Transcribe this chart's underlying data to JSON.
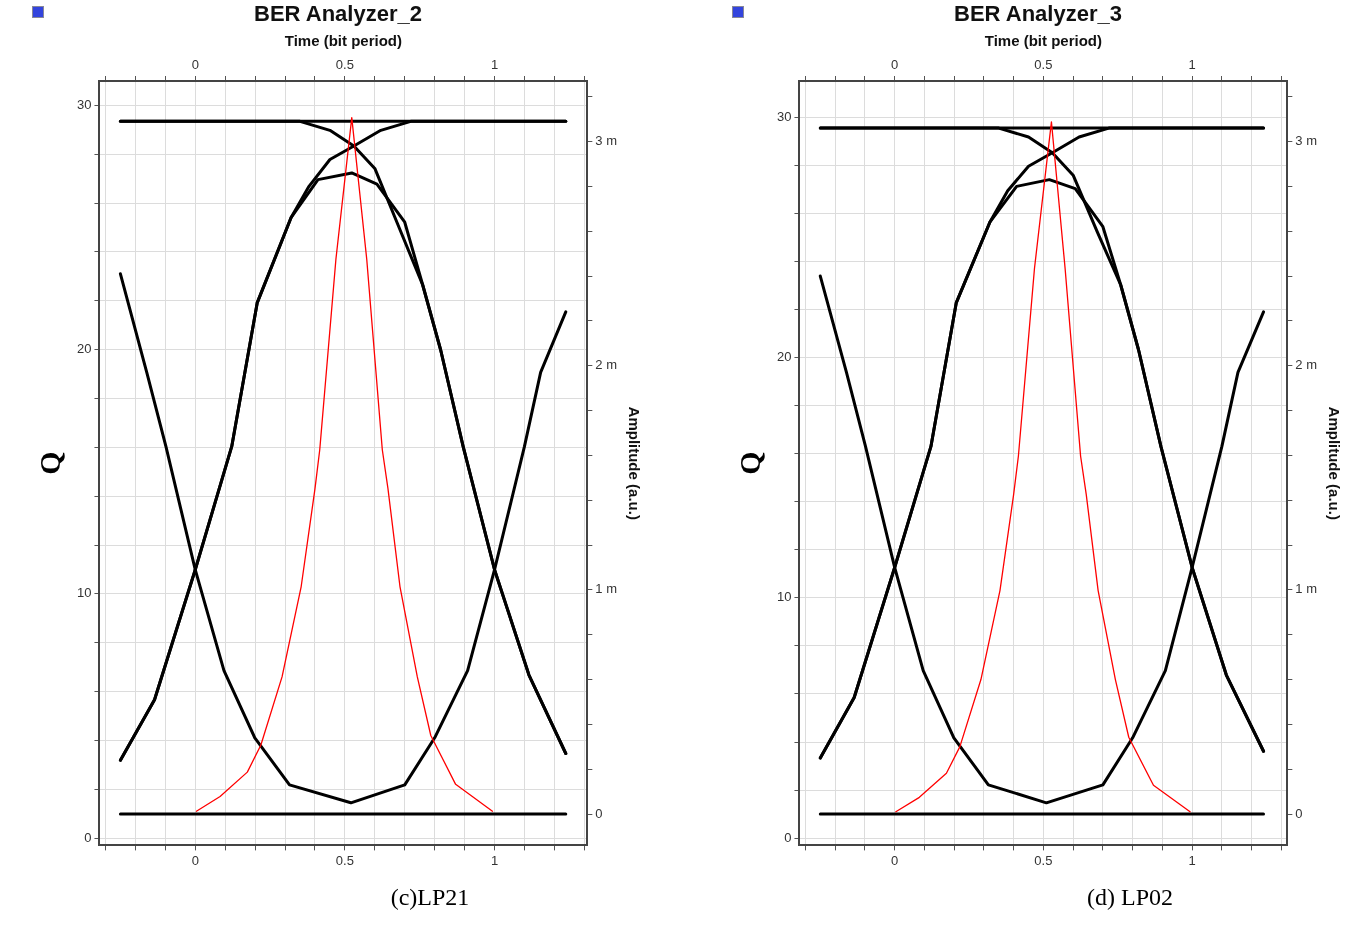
{
  "chart_data": [
    {
      "type": "line",
      "title": "BER Analyzer_2",
      "x2label": "Time (bit period)",
      "ylabel": "Q",
      "y2label": "Amplitude (a.u.)",
      "xlim": [
        -0.32,
        1.31
      ],
      "x2lim": [
        -0.32,
        1.31
      ],
      "xticks": [
        {
          "value": -0.3,
          "label": null
        },
        {
          "value": -0.2,
          "label": null
        },
        {
          "value": -0.1,
          "label": null
        },
        0,
        {
          "value": 0.1,
          "label": null
        },
        {
          "value": 0.2,
          "label": null
        },
        {
          "value": 0.3,
          "label": null
        },
        {
          "value": 0.4,
          "label": null
        },
        0.5,
        {
          "value": 0.6,
          "label": null
        },
        {
          "value": 0.7,
          "label": null
        },
        {
          "value": 0.8,
          "label": null
        },
        {
          "value": 0.9,
          "label": null
        },
        1,
        {
          "value": 1.1,
          "label": null
        },
        {
          "value": 1.2,
          "label": null
        },
        {
          "value": 1.3,
          "label": null
        }
      ],
      "x2ticks": [
        {
          "value": -0.3,
          "label": null
        },
        {
          "value": -0.2,
          "label": null
        },
        {
          "value": -0.1,
          "label": null
        },
        0,
        {
          "value": 0.1,
          "label": null
        },
        {
          "value": 0.2,
          "label": null
        },
        {
          "value": 0.3,
          "label": null
        },
        {
          "value": 0.4,
          "label": null
        },
        0.5,
        {
          "value": 0.6,
          "label": null
        },
        {
          "value": 0.7,
          "label": null
        },
        {
          "value": 0.8,
          "label": null
        },
        {
          "value": 0.9,
          "label": null
        },
        1,
        {
          "value": 1.1,
          "label": null
        },
        {
          "value": 1.2,
          "label": null
        },
        {
          "value": 1.3,
          "label": null
        }
      ],
      "ylim": [
        -0.3,
        31
      ],
      "yticks": [
        0,
        {
          "value": 2,
          "label": null
        },
        {
          "value": 4,
          "label": null
        },
        {
          "value": 6,
          "label": null
        },
        {
          "value": 8,
          "label": null
        },
        10,
        {
          "value": 12,
          "label": null
        },
        {
          "value": 14,
          "label": null
        },
        {
          "value": 16,
          "label": null
        },
        {
          "value": 18,
          "label": null
        },
        20,
        {
          "value": 22,
          "label": null
        },
        {
          "value": 24,
          "label": null
        },
        {
          "value": 26,
          "label": null
        },
        {
          "value": 28,
          "label": null
        },
        30
      ],
      "y2lim": [
        -0.14,
        3.27
      ],
      "y2ticks": [
        0,
        {
          "value": 0.2,
          "label": null
        },
        {
          "value": 0.4,
          "label": null
        },
        {
          "value": 0.6,
          "label": null
        },
        {
          "value": 0.8,
          "label": null
        },
        {
          "value": 1,
          "label": "1 m"
        },
        {
          "value": 1.2,
          "label": null
        },
        {
          "value": 1.4,
          "label": null
        },
        {
          "value": 1.6,
          "label": null
        },
        {
          "value": 1.8,
          "label": null
        },
        {
          "value": 2,
          "label": "2 m"
        },
        {
          "value": 2.2,
          "label": null
        },
        {
          "value": 2.4,
          "label": null
        },
        {
          "value": 2.6,
          "label": null
        },
        {
          "value": 2.8,
          "label": null
        },
        {
          "value": 3,
          "label": "3 m"
        },
        {
          "value": 3.2,
          "label": null
        }
      ],
      "grid": true,
      "marker": "none",
      "annotations": [
        "(c)LP21"
      ],
      "series": [
        {
          "axis": "y2",
          "color": "#000000",
          "x": [
            -0.25,
            1.238
          ],
          "values": [
            3.09,
            3.09
          ]
        },
        {
          "axis": "y2",
          "color": "#000000",
          "x": [
            -0.25,
            1.238
          ],
          "values": [
            0.0,
            0.0
          ]
        },
        {
          "axis": "y2",
          "color": "#000000",
          "x": [
            -0.25,
            -0.136,
            0,
            0.122,
            0.207,
            0.32,
            0.41,
            0.523,
            0.607,
            0.7,
            0.76,
            0.82,
            0.895,
            1.0,
            1.115,
            1.238
          ],
          "values": [
            0.24,
            0.51,
            1.09,
            1.64,
            2.28,
            2.66,
            2.83,
            2.86,
            2.81,
            2.64,
            2.36,
            2.07,
            1.64,
            1.09,
            0.62,
            0.27
          ]
        },
        {
          "axis": "y2",
          "color": "#000000",
          "x": [
            -0.25,
            -0.162,
            -0.098,
            0,
            0.096,
            0.199,
            0.315,
            0.52,
            0.7,
            0.8,
            0.91,
            1.0,
            1.1,
            1.154,
            1.238
          ],
          "values": [
            2.41,
            1.97,
            1.64,
            1.09,
            0.64,
            0.34,
            0.13,
            0.05,
            0.13,
            0.34,
            0.64,
            1.09,
            1.64,
            1.97,
            2.24
          ]
        },
        {
          "axis": "y2",
          "color": "#000000",
          "x": [
            -0.25,
            0.35,
            0.45,
            0.53,
            0.6,
            0.68,
            0.76,
            0.82,
            0.895,
            1.0,
            1.115,
            1.238
          ],
          "values": [
            3.09,
            3.09,
            3.05,
            2.98,
            2.88,
            2.62,
            2.36,
            2.07,
            1.64,
            1.09,
            0.62,
            0.27
          ]
        },
        {
          "axis": "y2",
          "color": "#000000",
          "x": [
            -0.25,
            -0.136,
            0,
            0.122,
            0.207,
            0.32,
            0.38,
            0.45,
            0.53,
            0.62,
            0.72,
            1.238
          ],
          "values": [
            0.24,
            0.51,
            1.09,
            1.64,
            2.28,
            2.66,
            2.8,
            2.92,
            2.98,
            3.05,
            3.09,
            3.09
          ]
        },
        {
          "color": "#ff0000",
          "x": [
            0.004,
            0.083,
            0.174,
            0.219,
            0.29,
            0.354,
            0.4,
            0.416,
            0.47,
            0.523,
            0.573,
            0.625,
            0.644,
            0.684,
            0.742,
            0.787,
            0.87,
            0.993
          ],
          "values": [
            1.1,
            1.7,
            2.7,
            3.8,
            6.6,
            10.3,
            14.3,
            15.9,
            23.7,
            29.5,
            23.7,
            15.9,
            14.3,
            10.3,
            6.6,
            4.2,
            2.2,
            1.1
          ]
        }
      ]
    },
    {
      "type": "line",
      "title": "BER Analyzer_3",
      "x2label": "Time (bit period)",
      "ylabel": "Q",
      "y2label": "Amplitude (a.u.)",
      "xlim": [
        -0.32,
        1.32
      ],
      "x2lim": [
        -0.32,
        1.32
      ],
      "xticks": [
        {
          "value": -0.3,
          "label": null
        },
        {
          "value": -0.2,
          "label": null
        },
        {
          "value": -0.1,
          "label": null
        },
        0,
        {
          "value": 0.1,
          "label": null
        },
        {
          "value": 0.2,
          "label": null
        },
        {
          "value": 0.3,
          "label": null
        },
        {
          "value": 0.4,
          "label": null
        },
        0.5,
        {
          "value": 0.6,
          "label": null
        },
        {
          "value": 0.7,
          "label": null
        },
        {
          "value": 0.8,
          "label": null
        },
        {
          "value": 0.9,
          "label": null
        },
        1,
        {
          "value": 1.1,
          "label": null
        },
        {
          "value": 1.2,
          "label": null
        },
        {
          "value": 1.3,
          "label": null
        }
      ],
      "x2ticks": [
        {
          "value": -0.3,
          "label": null
        },
        {
          "value": -0.2,
          "label": null
        },
        {
          "value": -0.1,
          "label": null
        },
        0,
        {
          "value": 0.1,
          "label": null
        },
        {
          "value": 0.2,
          "label": null
        },
        {
          "value": 0.3,
          "label": null
        },
        {
          "value": 0.4,
          "label": null
        },
        0.5,
        {
          "value": 0.6,
          "label": null
        },
        {
          "value": 0.7,
          "label": null
        },
        {
          "value": 0.8,
          "label": null
        },
        {
          "value": 0.9,
          "label": null
        },
        1,
        {
          "value": 1.1,
          "label": null
        },
        {
          "value": 1.2,
          "label": null
        },
        {
          "value": 1.3,
          "label": null
        }
      ],
      "ylim": [
        -0.3,
        31.5
      ],
      "yticks": [
        0,
        {
          "value": 2,
          "label": null
        },
        {
          "value": 4,
          "label": null
        },
        {
          "value": 6,
          "label": null
        },
        {
          "value": 8,
          "label": null
        },
        10,
        {
          "value": 12,
          "label": null
        },
        {
          "value": 14,
          "label": null
        },
        {
          "value": 16,
          "label": null
        },
        {
          "value": 18,
          "label": null
        },
        20,
        {
          "value": 22,
          "label": null
        },
        {
          "value": 24,
          "label": null
        },
        {
          "value": 26,
          "label": null
        },
        {
          "value": 28,
          "label": null
        },
        30
      ],
      "y2lim": [
        -0.14,
        3.27
      ],
      "y2ticks": [
        0,
        {
          "value": 0.2,
          "label": null
        },
        {
          "value": 0.4,
          "label": null
        },
        {
          "value": 0.6,
          "label": null
        },
        {
          "value": 0.8,
          "label": null
        },
        {
          "value": 1,
          "label": "1 m"
        },
        {
          "value": 1.2,
          "label": null
        },
        {
          "value": 1.4,
          "label": null
        },
        {
          "value": 1.6,
          "label": null
        },
        {
          "value": 1.8,
          "label": null
        },
        {
          "value": 2,
          "label": "2 m"
        },
        {
          "value": 2.2,
          "label": null
        },
        {
          "value": 2.4,
          "label": null
        },
        {
          "value": 2.6,
          "label": null
        },
        {
          "value": 2.8,
          "label": null
        },
        {
          "value": 3,
          "label": "3 m"
        },
        {
          "value": 3.2,
          "label": null
        }
      ],
      "grid": true,
      "marker": "none",
      "annotations": [
        "(d) LP02"
      ],
      "series": [
        {
          "axis": "y2",
          "color": "#000000",
          "x": [
            -0.25,
            1.24
          ],
          "values": [
            3.06,
            3.06
          ]
        },
        {
          "axis": "y2",
          "color": "#000000",
          "x": [
            -0.25,
            1.24
          ],
          "values": [
            0.0,
            0.0
          ]
        },
        {
          "axis": "y2",
          "color": "#000000",
          "x": [
            -0.25,
            -0.136,
            0,
            0.122,
            0.207,
            0.32,
            0.41,
            0.52,
            0.607,
            0.7,
            0.76,
            0.82,
            0.895,
            1.0,
            1.115,
            1.24
          ],
          "values": [
            0.25,
            0.52,
            1.1,
            1.64,
            2.28,
            2.64,
            2.8,
            2.83,
            2.79,
            2.62,
            2.36,
            2.07,
            1.64,
            1.1,
            0.62,
            0.28
          ]
        },
        {
          "axis": "y2",
          "color": "#000000",
          "x": [
            -0.25,
            -0.162,
            -0.098,
            0,
            0.096,
            0.199,
            0.315,
            0.51,
            0.7,
            0.8,
            0.91,
            1.0,
            1.1,
            1.154,
            1.24
          ],
          "values": [
            2.4,
            1.97,
            1.64,
            1.1,
            0.64,
            0.34,
            0.13,
            0.05,
            0.13,
            0.34,
            0.64,
            1.1,
            1.64,
            1.97,
            2.24
          ]
        },
        {
          "axis": "y2",
          "color": "#000000",
          "x": [
            -0.25,
            0.35,
            0.45,
            0.53,
            0.6,
            0.68,
            0.76,
            0.82,
            0.895,
            1.0,
            1.115,
            1.24
          ],
          "values": [
            3.06,
            3.06,
            3.02,
            2.95,
            2.85,
            2.6,
            2.36,
            2.07,
            1.64,
            1.1,
            0.62,
            0.28
          ]
        },
        {
          "axis": "y2",
          "color": "#000000",
          "x": [
            -0.25,
            -0.136,
            0,
            0.122,
            0.207,
            0.32,
            0.38,
            0.45,
            0.53,
            0.62,
            0.72,
            1.24
          ],
          "values": [
            0.25,
            0.52,
            1.1,
            1.64,
            2.28,
            2.64,
            2.78,
            2.89,
            2.95,
            3.02,
            3.06,
            3.06
          ]
        },
        {
          "color": "#ff0000",
          "x": [
            0.004,
            0.083,
            0.174,
            0.219,
            0.29,
            0.354,
            0.4,
            0.416,
            0.47,
            0.527,
            0.573,
            0.625,
            0.644,
            0.684,
            0.742,
            0.787,
            0.87,
            0.993
          ],
          "values": [
            1.1,
            1.7,
            2.7,
            3.8,
            6.6,
            10.3,
            14.3,
            15.9,
            23.7,
            29.8,
            23.7,
            15.9,
            14.3,
            10.3,
            6.6,
            4.2,
            2.2,
            1.1
          ]
        }
      ]
    }
  ]
}
